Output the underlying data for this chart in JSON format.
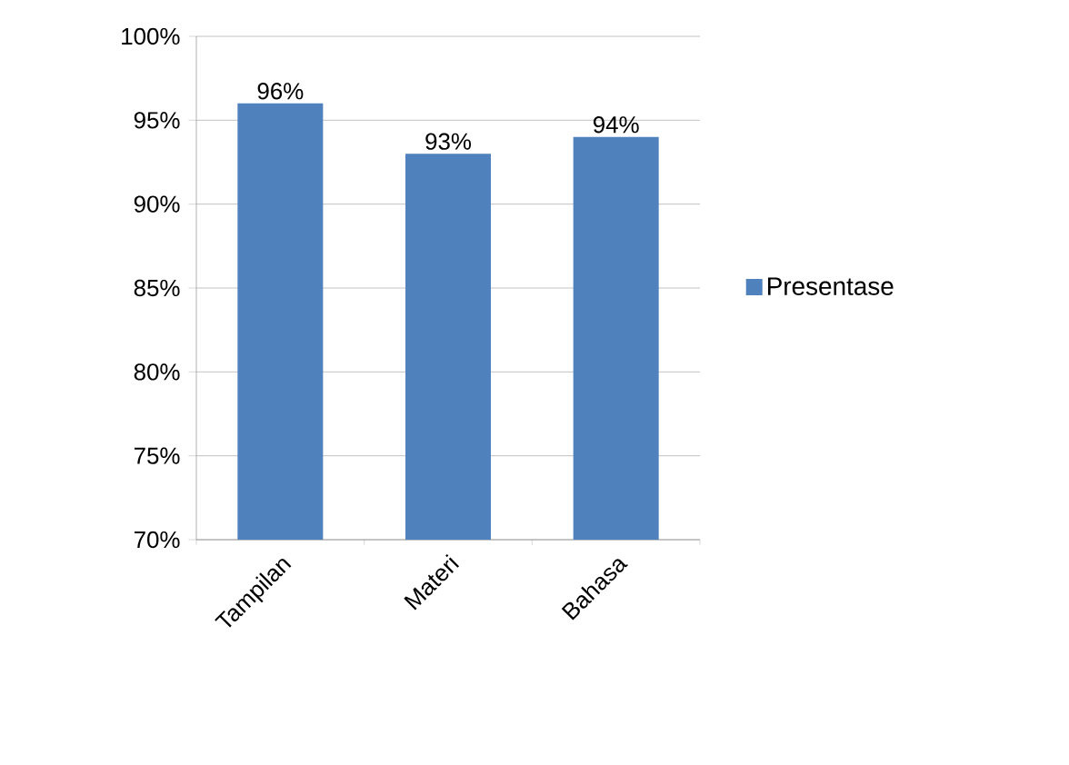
{
  "chart_data": {
    "type": "bar",
    "categories": [
      "Tampilan",
      "Materi",
      "Bahasa"
    ],
    "series": [
      {
        "name": "Presentase",
        "color": "#4f81bd",
        "values": [
          96,
          93,
          94
        ]
      }
    ],
    "value_labels": [
      "96%",
      "93%",
      "94%"
    ],
    "ylim": [
      70,
      100
    ],
    "yticks": [
      {
        "value": 70,
        "label": "70%"
      },
      {
        "value": 75,
        "label": "75%"
      },
      {
        "value": 80,
        "label": "80%"
      },
      {
        "value": 85,
        "label": "85%"
      },
      {
        "value": 90,
        "label": "90%"
      },
      {
        "value": 95,
        "label": "95%"
      },
      {
        "value": 100,
        "label": "100%"
      }
    ],
    "grid": "y",
    "legend": "right"
  }
}
